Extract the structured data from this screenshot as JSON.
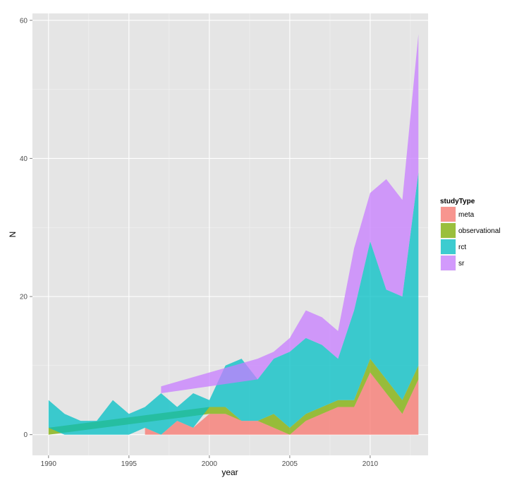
{
  "chart_data": {
    "type": "area",
    "xlabel": "year",
    "ylabel": "N",
    "xlim": [
      1989,
      2013.6
    ],
    "ylim": [
      -3,
      61
    ],
    "x_ticks": [
      1990,
      1995,
      2000,
      2005,
      2010
    ],
    "y_ticks": [
      0,
      20,
      40,
      60
    ],
    "grid": true,
    "legend_title": "studyType",
    "legend_position": "right",
    "series": [
      {
        "name": "meta",
        "color": "#F8766D",
        "x": [
          1996,
          1997,
          1998,
          1999,
          2000,
          2001,
          2002,
          2003,
          2004,
          2005,
          2006,
          2007,
          2008,
          2009,
          2010,
          2011,
          2012,
          2013
        ],
        "values": [
          1,
          0,
          2,
          1,
          3,
          3,
          2,
          2,
          1,
          0,
          2,
          3,
          4,
          4,
          9,
          6,
          3,
          8
        ]
      },
      {
        "name": "observational",
        "color": "#7CAE00",
        "x": [
          1990,
          2000,
          2001,
          2002,
          2003,
          2004,
          2005,
          2006,
          2007,
          2008,
          2009,
          2010,
          2011,
          2012,
          2013
        ],
        "values": [
          1,
          1,
          1,
          0,
          0,
          2,
          1,
          1,
          1,
          1,
          1,
          2,
          2,
          2,
          2
        ]
      },
      {
        "name": "rct",
        "color": "#00BFC4",
        "x": [
          1990,
          1991,
          1992,
          1993,
          1994,
          1995,
          1996,
          1997,
          1998,
          1999,
          2000,
          2001,
          2002,
          2003,
          2004,
          2005,
          2006,
          2007,
          2008,
          2009,
          2010,
          2011,
          2012,
          2013
        ],
        "values": [
          4,
          3,
          2,
          2,
          5,
          3,
          3,
          6,
          2,
          5,
          1,
          6,
          9,
          6,
          8,
          11,
          11,
          9,
          6,
          13,
          17,
          13,
          15,
          28
        ]
      },
      {
        "name": "sr",
        "color": "#C77CFF",
        "x": [
          1997,
          2003,
          2004,
          2005,
          2006,
          2007,
          2008,
          2009,
          2010,
          2011,
          2012,
          2013
        ],
        "values": [
          1,
          3,
          1,
          2,
          4,
          4,
          4,
          9,
          7,
          16,
          14,
          20
        ]
      }
    ]
  }
}
